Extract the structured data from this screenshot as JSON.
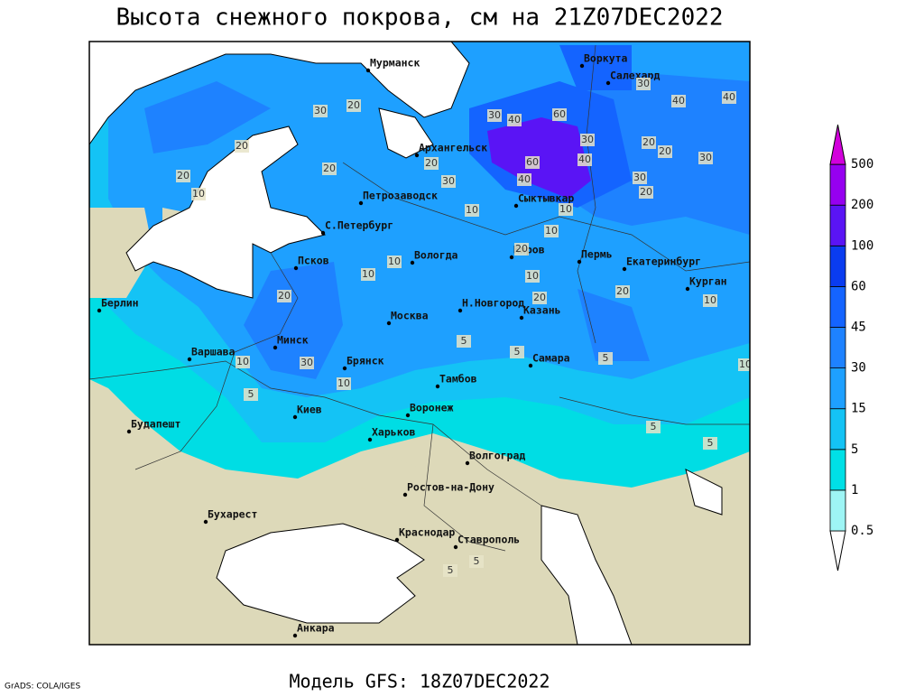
{
  "header": {
    "title": "Высота снежного покрова, см на 21Z07DEC2022"
  },
  "footer": {
    "model": "Модель GFS: 18Z07DEC2022"
  },
  "credit": "GrADS: COLA/IGES",
  "map": {
    "cities": [
      "Мурманск",
      "Архангельск",
      "Петрозаводск",
      "С.Петербург",
      "Псков",
      "Вологда",
      "Киров",
      "Сыктывкар",
      "Воркута",
      "Салехард",
      "Пермь",
      "Екатеринбург",
      "Курган",
      "Н.Новгород",
      "Казань",
      "Москва",
      "Берлин",
      "Варшава",
      "Минск",
      "Брянск",
      "Тамбов",
      "Самара",
      "Киев",
      "Воронеж",
      "Харьков",
      "Волгоград",
      "Будапешт",
      "Ростов-на-Дону",
      "Бухарест",
      "Краснодар",
      "Ставрополь",
      "Анкара"
    ],
    "contour_labels": [
      30,
      20,
      30,
      40,
      60,
      30,
      40,
      60,
      40,
      20,
      30,
      20,
      20,
      10,
      30,
      20,
      30,
      20,
      10,
      40,
      40,
      30,
      20,
      10,
      20,
      10,
      20,
      10,
      20,
      20,
      10,
      20,
      10,
      30,
      10,
      10,
      5,
      10,
      5,
      5,
      5,
      5,
      5,
      10,
      5,
      5
    ]
  },
  "colorbar": {
    "levels": [
      0.5,
      1,
      5,
      15,
      30,
      45,
      60,
      100,
      200,
      500
    ],
    "colors": [
      "#ffffff",
      "#9ef5f5",
      "#00e0e6",
      "#14c3f5",
      "#1ea0ff",
      "#1e82ff",
      "#1464ff",
      "#0a3cf0",
      "#5a14f5",
      "#9600f0",
      "#d200dc"
    ]
  }
}
